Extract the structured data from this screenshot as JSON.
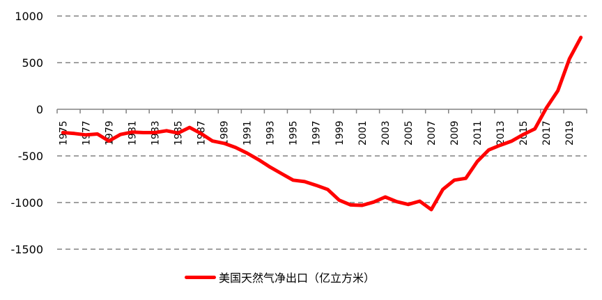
{
  "chart_data": {
    "type": "line",
    "title": "",
    "xlabel": "",
    "ylabel": "",
    "ylim": [
      -1500,
      1000
    ],
    "yticks": [
      1000,
      500,
      0,
      -500,
      -1000,
      -1500
    ],
    "grid": "horizontal dashed",
    "legend_position": "bottom",
    "x": [
      1975,
      1976,
      1977,
      1978,
      1979,
      1980,
      1981,
      1982,
      1983,
      1984,
      1985,
      1986,
      1987,
      1988,
      1989,
      1990,
      1991,
      1992,
      1993,
      1994,
      1995,
      1996,
      1997,
      1998,
      1999,
      2000,
      2001,
      2002,
      2003,
      2004,
      2005,
      2006,
      2007,
      2008,
      2009,
      2010,
      2011,
      2012,
      2013,
      2014,
      2015,
      2016,
      2017,
      2018,
      2019,
      2020
    ],
    "xtick_labels": [
      "1975",
      "1977",
      "1979",
      "1981",
      "1983",
      "1985",
      "1987",
      "1989",
      "1991",
      "1993",
      "1995",
      "1997",
      "1999",
      "2001",
      "2003",
      "2005",
      "2007",
      "2009",
      "2011",
      "2013",
      "2015",
      "2017",
      "2019"
    ],
    "series": [
      {
        "name": "美国天然气净出口（亿立方米）",
        "color": "#ff0000",
        "values": [
          -250,
          -260,
          -275,
          -265,
          -340,
          -270,
          -245,
          -250,
          -250,
          -230,
          -255,
          -195,
          -260,
          -340,
          -365,
          -410,
          -470,
          -540,
          -620,
          -690,
          -760,
          -775,
          -815,
          -860,
          -975,
          -1025,
          -1030,
          -995,
          -940,
          -990,
          -1020,
          -985,
          -1075,
          -860,
          -760,
          -740,
          -560,
          -435,
          -385,
          -340,
          -270,
          -210,
          15,
          200,
          540,
          770
        ]
      }
    ]
  },
  "legend": {
    "label": "美国天然气净出口（亿立方米）"
  }
}
